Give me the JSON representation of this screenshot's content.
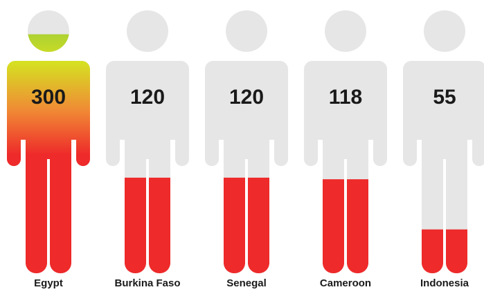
{
  "chart_data": {
    "type": "pictogram",
    "categories": [
      "Egypt",
      "Burkina Faso",
      "Senegal",
      "Cameroon",
      "Indonesia"
    ],
    "values": [
      300,
      120,
      120,
      118,
      55
    ],
    "ylim": [
      0,
      330
    ],
    "color": [
      "#ee2a2a",
      "#ee2a2a",
      "#f08a35",
      "#d6e021",
      "#8cc63f"
    ]
  }
}
